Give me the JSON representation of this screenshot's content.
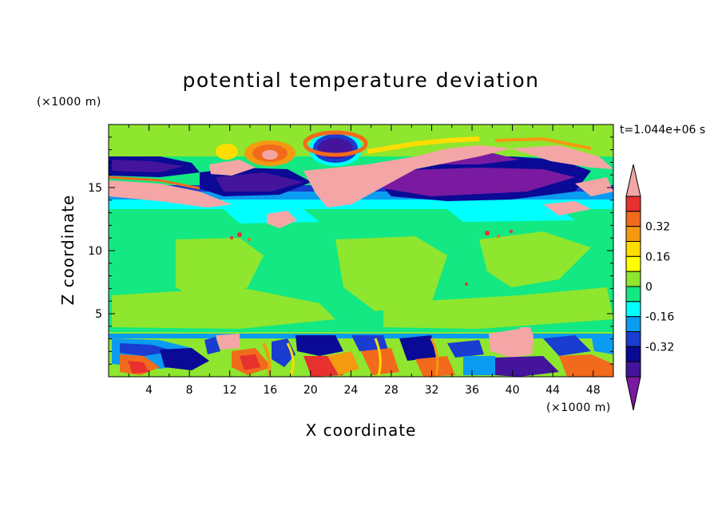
{
  "chart_data": {
    "type": "heatmap",
    "title": "potential temperature deviation",
    "xlabel": "X coordinate",
    "ylabel": "Z coordinate",
    "x_unit": "(×1000 m)",
    "z_unit": "(×1000 m)",
    "time_label": "t=1.044e+06 s",
    "xlim": [
      0,
      50
    ],
    "zlim": [
      0,
      20
    ],
    "x_ticks": [
      "4",
      "8",
      "12",
      "16",
      "20",
      "24",
      "28",
      "32",
      "36",
      "40",
      "44",
      "48"
    ],
    "z_ticks": [
      "5",
      "10",
      "15"
    ],
    "colorbar": {
      "levels": [
        -0.48,
        -0.4,
        -0.32,
        -0.24,
        -0.16,
        -0.08,
        0,
        0.08,
        0.16,
        0.24,
        0.32,
        0.4,
        0.48
      ],
      "labels": [
        "0.32",
        "0.16",
        "0",
        "-0.16",
        "-0.32"
      ],
      "colors_top_to_bottom": [
        "#f4a6a6",
        "#e8302e",
        "#f26a1c",
        "#f49a10",
        "#ffdd00",
        "#ffff00",
        "#8ee62e",
        "#14e882",
        "#00ffff",
        "#0a9cf0",
        "#1a3cd0",
        "#0a0a96",
        "#44149c",
        "#7a1aa0"
      ]
    }
  }
}
